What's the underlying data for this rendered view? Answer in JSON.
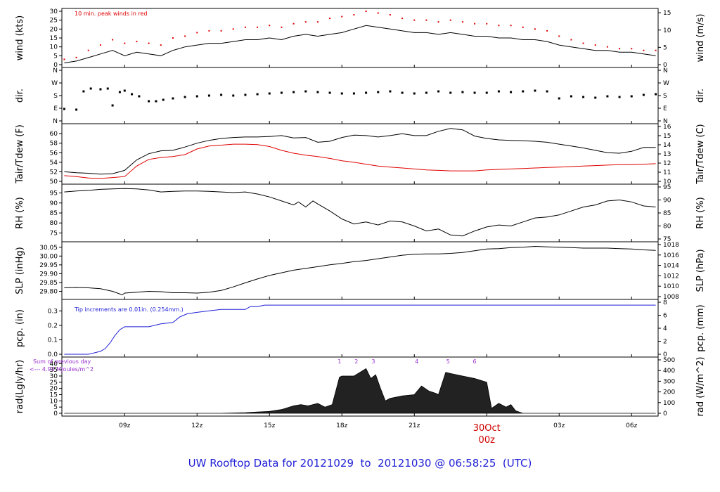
{
  "title": "UW Rooftop Data for 20121029  to  20121030 @ 06:58:25  (UTC)",
  "colors": {
    "axis": "#000000",
    "peak": "#e00000",
    "dew": "#e00000",
    "precip": "#1f1fd6",
    "annot": "#9b30d0",
    "date": "#d00000",
    "title": "#1f1fd6"
  },
  "chart_data": [
    {
      "id": "wind",
      "type": "line",
      "ylabel": "wind (kts)",
      "ylabel_right": "wind (m/s)",
      "yticks": [
        "0",
        "5",
        "10",
        "15",
        "20",
        "25",
        "30"
      ],
      "ylim": [
        0,
        30
      ],
      "yticks_right": [
        "0",
        "5",
        "10",
        "15"
      ],
      "right_factor": 0.5144,
      "annotation": "10 min. peak winds in red",
      "series": [
        {
          "x": [
            6.5,
            7,
            7.5,
            8,
            8.5,
            9,
            9.5,
            10,
            10.5,
            11,
            11.5,
            12,
            12.5,
            13,
            13.5,
            14,
            14.5,
            15,
            15.5,
            16,
            16.5,
            17,
            17.5,
            18,
            18.5,
            19,
            19.5,
            20,
            20.5,
            21,
            21.5,
            22,
            22.5,
            23,
            23.5,
            24,
            24.5,
            25,
            25.5,
            26,
            26.5,
            27,
            27.5,
            28,
            28.5,
            29,
            29.5,
            30,
            30.5,
            31
          ],
          "values": [
            1,
            2,
            4,
            6,
            8,
            5,
            7,
            6,
            5,
            8,
            10,
            11,
            12,
            12,
            13,
            14,
            14,
            15,
            14,
            16,
            17,
            16,
            17,
            18,
            20,
            22,
            21,
            20,
            19,
            18,
            18,
            17,
            18,
            17,
            16,
            16,
            15,
            15,
            14,
            14,
            13,
            11,
            10,
            9,
            8,
            8,
            7,
            7,
            6,
            5
          ]
        },
        {
          "name": "peak",
          "x": [
            6.5,
            7,
            7.5,
            8,
            8.5,
            9,
            9.5,
            10,
            10.5,
            11,
            11.5,
            12,
            12.5,
            13,
            13.5,
            14,
            14.5,
            15,
            15.5,
            16,
            16.5,
            17,
            17.5,
            18,
            18.5,
            19,
            19.5,
            20,
            20.5,
            21,
            21.5,
            22,
            22.5,
            23,
            23.5,
            24,
            24.5,
            25,
            25.5,
            26,
            26.5,
            27,
            27.5,
            28,
            28.5,
            29,
            29.5,
            30,
            30.5,
            31
          ],
          "values": [
            3,
            4,
            8,
            11,
            14,
            12,
            13,
            12,
            11,
            15,
            16,
            18,
            19,
            19,
            20,
            21,
            21,
            22,
            21,
            23,
            24,
            24,
            26,
            27,
            28,
            30,
            29,
            28,
            26,
            25,
            25,
            24,
            25,
            24,
            23,
            23,
            22,
            22,
            21,
            20,
            19,
            16,
            14,
            12,
            11,
            10,
            9,
            9,
            8,
            8
          ]
        }
      ]
    },
    {
      "id": "dir",
      "type": "scatter",
      "ylabel": "dir.",
      "ylabel_right": "dir.",
      "yticks": [
        "N",
        "E",
        "S",
        "W",
        "N"
      ],
      "ylim": [
        0,
        360
      ],
      "yticks_right": [
        "N",
        "E",
        "S",
        "W",
        "N"
      ],
      "series": [
        {
          "x": [
            6.5,
            7,
            7.3,
            7.6,
            8,
            8.3,
            8.5,
            8.8,
            9,
            9.3,
            9.6,
            10,
            10.3,
            10.6,
            11,
            11.5,
            12,
            12.5,
            13,
            13.5,
            14,
            14.5,
            15,
            15.5,
            16,
            16.5,
            17,
            17.5,
            18,
            18.5,
            19,
            19.5,
            20,
            20.5,
            21,
            21.5,
            22,
            22.5,
            23,
            23.5,
            24,
            24.5,
            25,
            25.5,
            26,
            26.5,
            27,
            27.5,
            28,
            28.5,
            29,
            29.5,
            30,
            30.5,
            31
          ],
          "values": [
            85,
            80,
            210,
            230,
            225,
            230,
            110,
            205,
            215,
            190,
            175,
            140,
            140,
            150,
            160,
            170,
            175,
            180,
            185,
            180,
            185,
            190,
            195,
            200,
            205,
            210,
            205,
            200,
            195,
            195,
            200,
            205,
            210,
            200,
            195,
            200,
            210,
            200,
            205,
            200,
            200,
            210,
            205,
            210,
            215,
            210,
            160,
            175,
            170,
            165,
            175,
            170,
            175,
            185,
            190
          ]
        }
      ]
    },
    {
      "id": "temp",
      "type": "line",
      "ylabel": "Tair/Tdew (F)",
      "ylabel_right": "Tair/Tdew (C)",
      "yticks": [
        "50",
        "52",
        "54",
        "56",
        "58",
        "60"
      ],
      "ylim": [
        50,
        61.5
      ],
      "yticks_right": [
        "10",
        "11",
        "12",
        "13",
        "14",
        "15",
        "16"
      ],
      "series": [
        {
          "name": "Tair",
          "x": [
            6.5,
            7,
            7.5,
            8,
            8.5,
            9,
            9.5,
            10,
            10.5,
            11,
            11.5,
            12,
            12.5,
            13,
            13.5,
            14,
            14.5,
            15,
            15.5,
            16,
            16.5,
            17,
            17.5,
            18,
            18.5,
            19,
            19.5,
            20,
            20.5,
            21,
            21.5,
            22,
            22.5,
            23,
            23.5,
            24,
            24.5,
            25,
            25.5,
            26,
            26.5,
            27,
            27.5,
            28,
            28.5,
            29,
            29.5,
            30,
            30.5,
            31
          ],
          "values": [
            52,
            51.8,
            51.7,
            51.5,
            51.6,
            52.3,
            54.5,
            55.8,
            56.4,
            56.5,
            57.2,
            58,
            58.6,
            59,
            59.2,
            59.3,
            59.3,
            59.4,
            59.6,
            59.1,
            59.2,
            58.2,
            58.4,
            59.2,
            59.7,
            59.6,
            59.3,
            59.6,
            60,
            59.6,
            59.6,
            60.5,
            61.1,
            60.8,
            59.5,
            59,
            58.7,
            58.6,
            58.5,
            58.4,
            58.2,
            57.8,
            57.4,
            57,
            56.5,
            56,
            55.9,
            56.3,
            57.1,
            57.1
          ]
        },
        {
          "name": "Tdew",
          "x": [
            6.5,
            7,
            7.5,
            8,
            8.5,
            9,
            9.5,
            10,
            10.5,
            11,
            11.5,
            12,
            12.5,
            13,
            13.5,
            14,
            14.5,
            15,
            15.5,
            16,
            16.5,
            17,
            17.5,
            18,
            18.5,
            19,
            19.5,
            20,
            20.5,
            21,
            21.5,
            22,
            22.5,
            23,
            23.5,
            24,
            24.5,
            25,
            25.5,
            26,
            26.5,
            27,
            27.5,
            28,
            28.5,
            29,
            29.5,
            30,
            30.5,
            31
          ],
          "values": [
            51.2,
            51,
            50.7,
            50.6,
            50.8,
            51,
            53.2,
            54.6,
            55,
            55.2,
            55.6,
            56.8,
            57.4,
            57.6,
            57.8,
            57.8,
            57.7,
            57.3,
            56.5,
            55.9,
            55.5,
            55.2,
            54.8,
            54.3,
            54,
            53.6,
            53.2,
            53,
            52.8,
            52.6,
            52.4,
            52.3,
            52.2,
            52.2,
            52.2,
            52.4,
            52.5,
            52.6,
            52.7,
            52.8,
            52.9,
            53,
            53.1,
            53.2,
            53.3,
            53.4,
            53.5,
            53.5,
            53.6,
            53.7
          ]
        }
      ]
    },
    {
      "id": "rh",
      "type": "line",
      "ylabel": "RH (%)",
      "ylabel_right": "RH (%)",
      "yticks": [
        "75",
        "80",
        "85",
        "90",
        "95"
      ],
      "ylim": [
        72,
        98
      ],
      "yticks_right": [
        "75",
        "80",
        "85",
        "90",
        "95"
      ],
      "series": [
        {
          "x": [
            6.5,
            7,
            7.5,
            8,
            8.5,
            9,
            9.5,
            10,
            10.5,
            11,
            11.5,
            12,
            12.5,
            13,
            13.5,
            14,
            14.5,
            15,
            15.5,
            16,
            16.2,
            16.5,
            16.8,
            17,
            17.5,
            18,
            18.5,
            19,
            19.5,
            20,
            20.5,
            21,
            21.5,
            22,
            22.5,
            23,
            23.5,
            24,
            24.5,
            25,
            25.5,
            26,
            26.5,
            27,
            27.5,
            28,
            28.5,
            29,
            29.5,
            30,
            30.5,
            31
          ],
          "values": [
            95.5,
            96,
            96.3,
            96.8,
            97,
            97.2,
            97,
            96.5,
            95.5,
            95.8,
            96,
            96,
            95.8,
            95.5,
            95.2,
            95.5,
            94.5,
            93,
            91,
            89,
            90.5,
            88,
            91,
            89.5,
            86,
            82,
            79.5,
            80.5,
            79,
            81,
            80.5,
            78.5,
            76,
            77,
            74,
            73.5,
            76,
            78,
            79,
            78.5,
            80.5,
            82.5,
            83,
            84,
            86,
            88,
            89,
            91,
            91.5,
            90.5,
            88.5,
            88
          ]
        }
      ]
    },
    {
      "id": "slp",
      "type": "line",
      "ylabel": "SLP (inHg)",
      "ylabel_right": "SLP (hPa)",
      "yticks": [
        "29.80",
        "29.85",
        "29.90",
        "29.95",
        "30.00",
        "30.05"
      ],
      "ylim": [
        29.77,
        30.065
      ],
      "yticks_right": [
        "1008",
        "1010",
        "1012",
        "1014",
        "1016",
        "1018"
      ],
      "series": [
        {
          "x": [
            6.5,
            7,
            7.5,
            8,
            8.5,
            8.9,
            9,
            9.5,
            10,
            10.5,
            11,
            11.5,
            12,
            12.5,
            13,
            13.5,
            14,
            14.5,
            15,
            15.5,
            16,
            16.5,
            17,
            17.5,
            18,
            18.5,
            19,
            19.5,
            20,
            20.5,
            21,
            21.5,
            22,
            22.5,
            23,
            23.5,
            24,
            24.5,
            25,
            25.5,
            26,
            26.5,
            27,
            27.5,
            28,
            28.5,
            29,
            29.5,
            30,
            30.5,
            31
          ],
          "values": [
            29.82,
            29.822,
            29.82,
            29.815,
            29.8,
            29.78,
            29.79,
            29.795,
            29.8,
            29.798,
            29.792,
            29.792,
            29.79,
            29.795,
            29.805,
            29.825,
            29.848,
            29.87,
            29.89,
            29.905,
            29.92,
            29.93,
            29.94,
            29.95,
            29.958,
            29.968,
            29.975,
            29.985,
            29.995,
            30.005,
            30.01,
            30.012,
            30.012,
            30.015,
            30.02,
            30.03,
            30.04,
            30.042,
            30.048,
            30.05,
            30.055,
            30.052,
            30.05,
            30.048,
            30.045,
            30.045,
            30.045,
            30.042,
            30.04,
            30.035,
            30.032
          ]
        }
      ]
    },
    {
      "id": "pcp",
      "type": "line",
      "ylabel": "pcp. (in)",
      "ylabel_right": "pcp. (mm)",
      "yticks": [
        "0.0",
        "0.1",
        "0.2",
        "0.3"
      ],
      "ylim": [
        0,
        0.36
      ],
      "yticks_right": [
        "0",
        "2",
        "4",
        "6",
        "8"
      ],
      "annotation": "Tip increments are 0.01in. (0.254mm.)",
      "series": [
        {
          "x": [
            6.5,
            7,
            7.5,
            8,
            8.2,
            8.4,
            8.6,
            8.8,
            9,
            9.5,
            10,
            10.5,
            11,
            11.3,
            11.6,
            12,
            12.5,
            13,
            13.5,
            14,
            14.2,
            14.5,
            14.8,
            15,
            31
          ],
          "values": [
            0,
            0,
            0,
            0.02,
            0.04,
            0.08,
            0.13,
            0.17,
            0.19,
            0.19,
            0.19,
            0.21,
            0.22,
            0.26,
            0.28,
            0.29,
            0.3,
            0.31,
            0.31,
            0.31,
            0.33,
            0.33,
            0.34,
            0.34,
            0.34
          ]
        }
      ]
    },
    {
      "id": "rad",
      "type": "area",
      "ylabel": "rad(Lgly/hr)",
      "ylabel_right": "rad (W/m^2)",
      "yticks": [
        "0",
        "5",
        "10",
        "15",
        "20",
        "25",
        "30",
        "35",
        "40"
      ],
      "ylim": [
        0,
        43
      ],
      "yticks_right": [
        "0",
        "100",
        "200",
        "300",
        "400",
        "500"
      ],
      "annotation_lines": [
        "Sum of previous day",
        "<--- 4.93 MJoules/m^2"
      ],
      "markers": [
        "1",
        "2",
        "3",
        "4",
        "5",
        "6"
      ],
      "marker_x": [
        17.9,
        18.6,
        19.3,
        21.1,
        22.4,
        23.5
      ],
      "series": [
        {
          "x": [
            6.5,
            13,
            14,
            14.5,
            15,
            15.5,
            16,
            16.3,
            16.6,
            17,
            17.3,
            17.6,
            17.9,
            18,
            18.5,
            19,
            19.2,
            19.4,
            19.6,
            19.8,
            20,
            20.5,
            21,
            21.3,
            21.6,
            21.9,
            22,
            22.3,
            22.5,
            23,
            23.5,
            24,
            24.2,
            24.5,
            24.8,
            25,
            25.2,
            25.5,
            31
          ],
          "values": [
            0,
            0,
            0.5,
            1,
            1.5,
            3,
            6,
            7,
            6,
            8,
            5,
            7,
            29,
            30,
            30,
            36,
            28,
            31,
            20,
            10,
            12,
            14,
            15,
            22,
            18,
            16,
            15,
            33,
            32,
            30,
            28,
            25,
            4,
            8,
            5,
            7,
            2,
            0,
            0
          ]
        }
      ]
    }
  ],
  "xaxis": {
    "xlim": [
      6.4,
      31.1
    ],
    "ticks": [
      "09z",
      "12z",
      "15z",
      "18z",
      "21z",
      "00z",
      "03z",
      "06z"
    ],
    "tick_x": [
      9,
      12,
      15,
      18,
      21,
      24,
      27,
      30
    ],
    "date_label": "30Oct",
    "date_tick": "00z"
  }
}
